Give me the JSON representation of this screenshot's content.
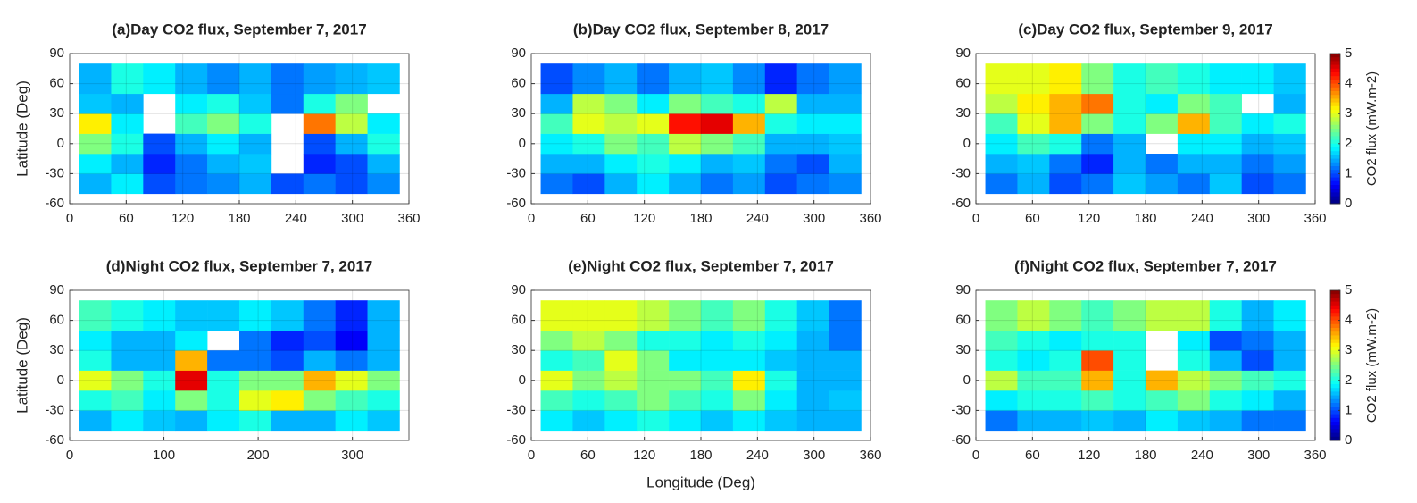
{
  "chart_data": [
    {
      "type": "heatmap",
      "title": "(a)Day CO2 flux, September 7, 2017",
      "ylabel": "Latitude (Deg)",
      "xlim": [
        0,
        360
      ],
      "ylim": [
        -60,
        90
      ],
      "xticks": [
        0,
        60,
        120,
        180,
        240,
        300,
        360
      ],
      "yticks": [
        -60,
        -30,
        0,
        30,
        60,
        90
      ],
      "grid": true,
      "colormap": "jet",
      "zlim": [
        0,
        5
      ],
      "x_edges": [
        10,
        44,
        78,
        112,
        146,
        180,
        214,
        248,
        282,
        316,
        350
      ],
      "y_edges": [
        -50,
        -30,
        -10,
        10,
        30,
        50,
        80
      ],
      "values": [
        [
          1.5,
          1.8,
          1,
          1.2,
          1.3,
          1.5,
          1,
          1.2,
          1,
          1.3
        ],
        [
          1.8,
          1.5,
          0.8,
          1.2,
          1.5,
          1.6,
          null,
          0.8,
          1,
          1.5
        ],
        [
          2.5,
          2,
          1,
          1.5,
          1.8,
          1.5,
          null,
          1,
          1.5,
          2
        ],
        [
          3.2,
          1.8,
          null,
          2.2,
          2.5,
          2,
          null,
          3.8,
          2.8,
          1.8
        ],
        [
          1.6,
          1.5,
          null,
          1.8,
          2,
          1.6,
          1.2,
          2,
          2.5,
          null
        ],
        [
          1.5,
          2,
          1.8,
          1.5,
          1.3,
          1.5,
          1.2,
          1.4,
          1.5,
          1.6
        ]
      ]
    },
    {
      "type": "heatmap",
      "title": "(b)Day CO2 flux, September 8, 2017",
      "xlim": [
        0,
        360
      ],
      "ylim": [
        -60,
        90
      ],
      "xticks": [
        0,
        60,
        120,
        180,
        240,
        300,
        360
      ],
      "yticks": [
        -60,
        -30,
        0,
        30,
        60,
        90
      ],
      "grid": true,
      "colormap": "jet",
      "zlim": [
        0,
        5
      ],
      "x_edges": [
        10,
        44,
        78,
        112,
        146,
        180,
        214,
        248,
        282,
        316,
        350
      ],
      "y_edges": [
        -50,
        -30,
        -10,
        10,
        30,
        50,
        80
      ],
      "values": [
        [
          1.2,
          1,
          1.5,
          1.8,
          1.5,
          1.2,
          1.4,
          1,
          1.2,
          1.3
        ],
        [
          1.5,
          1.5,
          1.8,
          2,
          1.8,
          1.5,
          1.6,
          1.2,
          1,
          1.5
        ],
        [
          1.8,
          2,
          2.5,
          2.2,
          2.8,
          2.5,
          2.2,
          1.5,
          1.5,
          1.6
        ],
        [
          2.2,
          3,
          2.8,
          3,
          4.3,
          4.5,
          3.5,
          2,
          1.8,
          1.8
        ],
        [
          1.5,
          2.8,
          2.5,
          1.8,
          2.5,
          2.2,
          2,
          2.8,
          1.5,
          1.5
        ],
        [
          1,
          1.3,
          1.5,
          1.2,
          1.5,
          1.6,
          1.3,
          0.8,
          1.2,
          1.4
        ]
      ]
    },
    {
      "type": "heatmap",
      "title": "(c)Day CO2 flux, September 9, 2017",
      "xlim": [
        0,
        360
      ],
      "ylim": [
        -60,
        90
      ],
      "xticks": [
        0,
        60,
        120,
        180,
        240,
        300,
        360
      ],
      "yticks": [
        -60,
        -30,
        0,
        30,
        60,
        90
      ],
      "grid": true,
      "colormap": "jet",
      "zlim": [
        0,
        5
      ],
      "colorbar_ticks": [
        0,
        1,
        2,
        3,
        4,
        5
      ],
      "colorbar_label": "CO2 flux (mW.m-2)",
      "x_edges": [
        10,
        44,
        78,
        112,
        146,
        180,
        214,
        248,
        282,
        316,
        350
      ],
      "y_edges": [
        -50,
        -30,
        -10,
        10,
        30,
        50,
        80
      ],
      "values": [
        [
          1.2,
          1.5,
          1,
          1.2,
          1.6,
          1.4,
          1.2,
          1.6,
          1,
          1.2
        ],
        [
          1.5,
          1.6,
          1.2,
          0.8,
          1.5,
          1.2,
          1.5,
          1.5,
          1.2,
          1.4
        ],
        [
          1.8,
          2.2,
          2,
          1.2,
          1.5,
          null,
          1.8,
          1.8,
          1.5,
          1.6
        ],
        [
          2.2,
          3,
          3.5,
          2.5,
          2,
          2.5,
          3.5,
          2.2,
          1.8,
          2
        ],
        [
          2.8,
          3.2,
          3.5,
          3.8,
          2,
          1.8,
          2.5,
          2.2,
          null,
          1.5
        ],
        [
          3,
          3,
          3.2,
          2.5,
          2,
          2.2,
          2,
          1.8,
          1.8,
          1.6
        ]
      ]
    },
    {
      "type": "heatmap",
      "title": "(d)Night CO2 flux, September 7, 2017",
      "ylabel": "Latitude (Deg)",
      "xlim": [
        0,
        360
      ],
      "ylim": [
        -60,
        90
      ],
      "xticks": [
        0,
        100,
        200,
        300
      ],
      "yticks": [
        -60,
        -30,
        0,
        30,
        60,
        90
      ],
      "grid": true,
      "colormap": "jet",
      "zlim": [
        0,
        5
      ],
      "x_edges": [
        10,
        44,
        78,
        112,
        146,
        180,
        214,
        248,
        282,
        316,
        350
      ],
      "y_edges": [
        -50,
        -30,
        -10,
        10,
        30,
        50,
        80
      ],
      "values": [
        [
          1.5,
          1.8,
          1.6,
          1.5,
          1.8,
          2,
          1.5,
          1.5,
          1.8,
          1.6
        ],
        [
          2,
          2.2,
          1.8,
          2.5,
          2,
          3,
          3.2,
          2.5,
          2.2,
          2
        ],
        [
          3,
          2.5,
          2,
          4.5,
          2,
          2.5,
          2.5,
          3.5,
          3,
          2.5
        ],
        [
          2,
          1.5,
          1.5,
          3.5,
          1.2,
          1.2,
          1,
          1.5,
          1.2,
          1.5
        ],
        [
          1.8,
          1.5,
          1.5,
          1.8,
          null,
          1.2,
          0.8,
          1,
          0.6,
          1.5
        ],
        [
          2.2,
          2,
          1.8,
          1.6,
          1.6,
          1.8,
          1.6,
          1.2,
          0.8,
          1.5
        ]
      ]
    },
    {
      "type": "heatmap",
      "title": "(e)Night CO2 flux, September 7, 2017",
      "xlabel": "Longitude (Deg)",
      "xlim": [
        0,
        360
      ],
      "ylim": [
        -60,
        90
      ],
      "xticks": [
        0,
        60,
        120,
        180,
        240,
        300,
        360
      ],
      "yticks": [
        -60,
        -30,
        0,
        30,
        60,
        90
      ],
      "grid": true,
      "colormap": "jet",
      "zlim": [
        0,
        5
      ],
      "x_edges": [
        10,
        44,
        78,
        112,
        146,
        180,
        214,
        248,
        282,
        316,
        350
      ],
      "y_edges": [
        -50,
        -30,
        -10,
        10,
        30,
        50,
        80
      ],
      "values": [
        [
          1.8,
          1.6,
          1.8,
          2,
          1.8,
          1.6,
          1.8,
          1.6,
          1.5,
          1.5
        ],
        [
          2.2,
          2,
          2.2,
          2.5,
          2.2,
          2,
          2.5,
          1.8,
          1.5,
          1.6
        ],
        [
          3,
          2.5,
          2.8,
          2.5,
          2.5,
          2.2,
          3.2,
          2,
          1.5,
          1.5
        ],
        [
          2,
          2.2,
          3,
          2.5,
          1.8,
          1.8,
          1.8,
          1.6,
          1.5,
          1.5
        ],
        [
          2.5,
          2.8,
          2.5,
          2,
          2,
          1.8,
          2,
          1.8,
          1.5,
          1.2
        ],
        [
          3,
          3,
          3,
          2.8,
          2.5,
          2.2,
          2.5,
          2,
          1.6,
          1.2
        ]
      ]
    },
    {
      "type": "heatmap",
      "title": "(f)Night CO2 flux, September 7, 2017",
      "xlim": [
        0,
        360
      ],
      "ylim": [
        -60,
        90
      ],
      "xticks": [
        0,
        60,
        120,
        180,
        240,
        300,
        360
      ],
      "yticks": [
        -60,
        -30,
        0,
        30,
        60,
        90
      ],
      "grid": true,
      "colormap": "jet",
      "zlim": [
        0,
        5
      ],
      "colorbar_ticks": [
        0,
        1,
        2,
        3,
        4,
        5
      ],
      "colorbar_label": "CO2 flux (mW.m-2)",
      "x_edges": [
        10,
        44,
        78,
        112,
        146,
        180,
        214,
        248,
        282,
        316,
        350
      ],
      "y_edges": [
        -50,
        -30,
        -10,
        10,
        30,
        50,
        80
      ],
      "values": [
        [
          1.2,
          1.5,
          1.5,
          1.6,
          1.5,
          1.8,
          1.6,
          1.5,
          1.2,
          1.2
        ],
        [
          1.8,
          2,
          2,
          2.2,
          2,
          2.2,
          2.5,
          2,
          1.8,
          1.5
        ],
        [
          2.8,
          2.2,
          2.2,
          3.5,
          2,
          3.5,
          2.8,
          2.5,
          2.2,
          2
        ],
        [
          2,
          1.8,
          2,
          4,
          2,
          null,
          2,
          1.5,
          1,
          1.5
        ],
        [
          2.2,
          2,
          1.8,
          2,
          2,
          null,
          1.8,
          1,
          1.2,
          1.5
        ],
        [
          2.5,
          2.8,
          2.5,
          2.2,
          2.5,
          2.8,
          2.8,
          2,
          1.5,
          1.8
        ]
      ]
    }
  ]
}
